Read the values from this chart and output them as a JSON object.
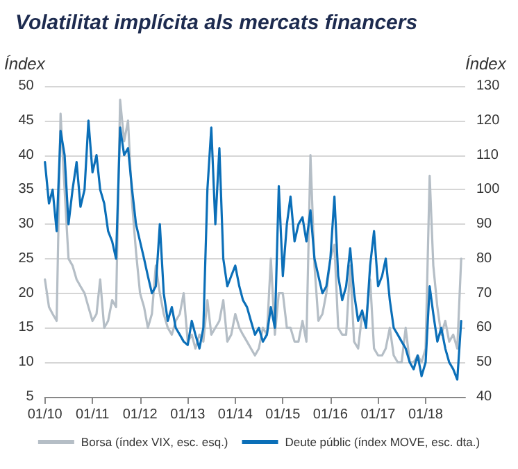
{
  "chart_data": {
    "type": "line",
    "title": "Volatilitat implícita als mercats financers",
    "ylabel": "Índex",
    "y2label": "Índex",
    "x": [
      "2010-01",
      "2010-02",
      "2010-03",
      "2010-04",
      "2010-05",
      "2010-06",
      "2010-07",
      "2010-08",
      "2010-09",
      "2010-10",
      "2010-11",
      "2010-12",
      "2011-01",
      "2011-02",
      "2011-03",
      "2011-04",
      "2011-05",
      "2011-06",
      "2011-07",
      "2011-08",
      "2011-09",
      "2011-10",
      "2011-11",
      "2011-12",
      "2012-01",
      "2012-02",
      "2012-03",
      "2012-04",
      "2012-05",
      "2012-06",
      "2012-07",
      "2012-08",
      "2012-09",
      "2012-10",
      "2012-11",
      "2012-12",
      "2013-01",
      "2013-02",
      "2013-03",
      "2013-04",
      "2013-05",
      "2013-06",
      "2013-07",
      "2013-08",
      "2013-09",
      "2013-10",
      "2013-11",
      "2013-12",
      "2014-01",
      "2014-02",
      "2014-03",
      "2014-04",
      "2014-05",
      "2014-06",
      "2014-07",
      "2014-08",
      "2014-09",
      "2014-10",
      "2014-11",
      "2014-12",
      "2015-01",
      "2015-02",
      "2015-03",
      "2015-04",
      "2015-05",
      "2015-06",
      "2015-07",
      "2015-08",
      "2015-09",
      "2015-10",
      "2015-11",
      "2015-12",
      "2016-01",
      "2016-02",
      "2016-03",
      "2016-04",
      "2016-05",
      "2016-06",
      "2016-07",
      "2016-08",
      "2016-09",
      "2016-10",
      "2016-11",
      "2016-12",
      "2017-01",
      "2017-02",
      "2017-03",
      "2017-04",
      "2017-05",
      "2017-06",
      "2017-07",
      "2017-08",
      "2017-09",
      "2017-10",
      "2017-11",
      "2017-12",
      "2018-01",
      "2018-02",
      "2018-03",
      "2018-04",
      "2018-05",
      "2018-06",
      "2018-07",
      "2018-08",
      "2018-09",
      "2018-10"
    ],
    "series": [
      {
        "name": "Borsa (índex VIX, esc. esq.)",
        "color": "#b5bec6",
        "values": [
          22,
          18,
          17,
          16,
          46,
          35,
          25,
          24,
          22,
          21,
          20,
          18,
          16,
          17,
          22,
          15,
          16,
          19,
          18,
          48,
          42,
          45,
          33,
          26,
          20,
          18,
          15,
          17,
          24,
          20,
          17,
          15,
          14,
          16,
          17,
          20,
          13,
          14,
          12,
          14,
          13,
          19,
          14,
          15,
          16,
          19,
          13,
          14,
          17,
          15,
          14,
          13,
          12,
          11,
          12,
          15,
          14,
          25,
          14,
          20,
          20,
          15,
          15,
          13,
          13,
          16,
          13,
          40,
          24,
          16,
          17,
          20,
          25,
          27,
          15,
          14,
          14,
          24,
          13,
          12,
          17,
          16,
          22,
          12,
          11,
          11,
          12,
          15,
          11,
          10,
          10,
          15,
          10,
          10,
          11,
          10,
          12,
          37,
          24,
          18,
          14,
          16,
          13,
          14,
          12,
          25
        ]
      },
      {
        "name": "Deute públic (índex MOVE, esc. dta.)",
        "color": "#0b6fb8",
        "axis": "y2",
        "values": [
          108,
          96,
          100,
          88,
          117,
          110,
          90,
          100,
          108,
          95,
          100,
          120,
          105,
          110,
          100,
          96,
          88,
          85,
          80,
          118,
          110,
          112,
          100,
          90,
          85,
          80,
          75,
          70,
          72,
          90,
          70,
          62,
          66,
          60,
          58,
          56,
          55,
          62,
          58,
          54,
          60,
          100,
          118,
          90,
          112,
          80,
          72,
          75,
          78,
          72,
          68,
          66,
          62,
          58,
          60,
          56,
          58,
          66,
          60,
          101,
          75,
          90,
          98,
          85,
          90,
          92,
          85,
          94,
          80,
          75,
          70,
          72,
          80,
          98,
          75,
          68,
          72,
          83,
          70,
          62,
          65,
          60,
          78,
          88,
          72,
          75,
          80,
          68,
          60,
          58,
          56,
          54,
          50,
          48,
          52,
          46,
          50,
          72,
          64,
          56,
          60,
          54,
          50,
          48,
          45,
          62
        ]
      }
    ],
    "xlim": [
      "2010-01",
      "2018-11"
    ],
    "xticks": [
      {
        "value": "2010-01",
        "label": "01/10"
      },
      {
        "value": "2011-01",
        "label": "01/11"
      },
      {
        "value": "2012-01",
        "label": "01/12"
      },
      {
        "value": "2013-01",
        "label": "01/13"
      },
      {
        "value": "2014-01",
        "label": "01/14"
      },
      {
        "value": "2015-01",
        "label": "01/15"
      },
      {
        "value": "2016-01",
        "label": "01/16"
      },
      {
        "value": "2017-01",
        "label": "01/17"
      },
      {
        "value": "2018-01",
        "label": "01/18"
      }
    ],
    "ylim": [
      5,
      50
    ],
    "yticks": [
      5,
      10,
      15,
      20,
      25,
      30,
      35,
      40,
      45,
      50
    ],
    "y2lim": [
      40,
      130
    ],
    "y2ticks": [
      40,
      50,
      60,
      70,
      80,
      90,
      100,
      110,
      120,
      130
    ],
    "grid": "y",
    "legend": "bottom"
  }
}
